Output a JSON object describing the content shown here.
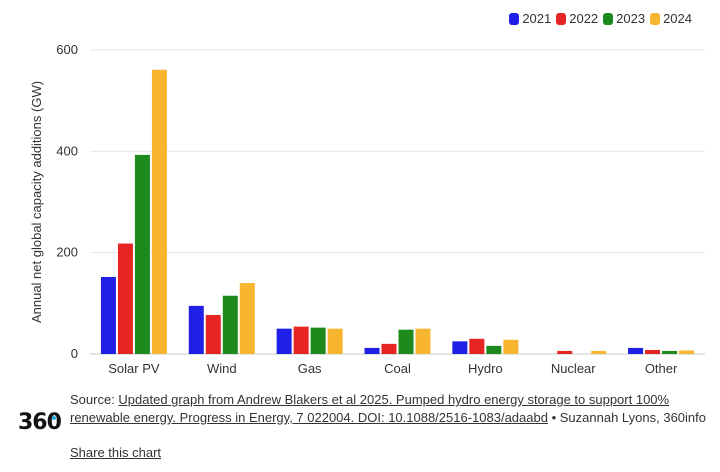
{
  "chart_data": {
    "type": "bar",
    "ylabel": "Annual net global capacity additions (GW)",
    "ylim": [
      0,
      600
    ],
    "yticks": [
      0,
      200,
      400,
      600
    ],
    "categories": [
      "Solar PV",
      "Wind",
      "Gas",
      "Coal",
      "Hydro",
      "Nuclear",
      "Other"
    ],
    "series": [
      {
        "name": "2021",
        "color": "#1f1fe6",
        "values": [
          152,
          95,
          50,
          12,
          25,
          0,
          12
        ]
      },
      {
        "name": "2022",
        "color": "#e62424",
        "values": [
          218,
          77,
          54,
          20,
          30,
          6,
          8
        ]
      },
      {
        "name": "2023",
        "color": "#1e8a1e",
        "values": [
          393,
          115,
          52,
          48,
          16,
          0,
          6
        ]
      },
      {
        "name": "2024",
        "color": "#f8b630",
        "values": [
          561,
          140,
          50,
          50,
          28,
          6,
          7
        ]
      }
    ],
    "grid": true,
    "legend": "top-right"
  },
  "source": {
    "prefix": "Source: ",
    "link_text": "Updated graph from Andrew Blakers et al 2025. Pumped hydro energy storage to support 100% renewable energy. Progress in Energy, 7 022004. DOI: 10.1088/2516-1083/adaabd",
    "suffix": " • Suzannah Lyons, 360info"
  },
  "share_label": "Share this chart",
  "logo": {
    "left": "36",
    "o": "0"
  }
}
